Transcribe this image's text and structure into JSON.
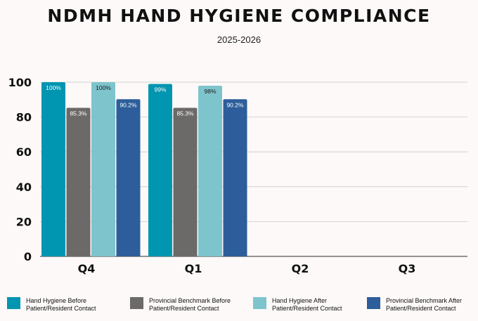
{
  "chart_data": {
    "type": "bar",
    "title": "NDMH HAND HYGIENE COMPLIANCE",
    "subtitle": "2025-2026",
    "categories": [
      "Q4",
      "Q1",
      "Q2",
      "Q3"
    ],
    "ylim": [
      0,
      100
    ],
    "yticks": [
      0,
      20,
      40,
      60,
      80,
      100
    ],
    "grid": true,
    "legend_position": "bottom",
    "series": [
      {
        "name": "Hand Hygiene Before Patient/Resident Contact",
        "color": "#0095b0",
        "label_color": "#ffffff",
        "values": [
          100,
          99,
          null,
          null
        ],
        "labels": [
          "100%",
          "99%",
          "",
          ""
        ]
      },
      {
        "name": "Provincial Benchmark Before Patient/Resident Contact",
        "color": "#6b6a68",
        "label_color": "#ffffff",
        "values": [
          85.3,
          85.3,
          null,
          null
        ],
        "labels": [
          "85.3%",
          "85.3%",
          "",
          ""
        ]
      },
      {
        "name": "Hand Hygiene After Patient/Resident Contact",
        "color": "#7ec4cd",
        "label_color": "#1a1a1a",
        "values": [
          100,
          98,
          null,
          null
        ],
        "labels": [
          "100%",
          "98%",
          "",
          ""
        ]
      },
      {
        "name": "Provincial Benchmark After Patient/Resident Contact",
        "color": "#2d5e9b",
        "label_color": "#ffffff",
        "values": [
          90.2,
          90.2,
          null,
          null
        ],
        "labels": [
          "90.2%",
          "90.2%",
          "",
          ""
        ]
      }
    ]
  },
  "legend": [
    {
      "line1": "Hand Hygiene Before",
      "line2": "Patient/Resident Contact"
    },
    {
      "line1": "Provincial Benchmark Before",
      "line2": "Patient/Resident Contact"
    },
    {
      "line1": "Hand Hygiene After",
      "line2": "Patient/Resident Contact"
    },
    {
      "line1": "Provincial Benchmark After",
      "line2": "Patient/Resident Contact"
    }
  ]
}
